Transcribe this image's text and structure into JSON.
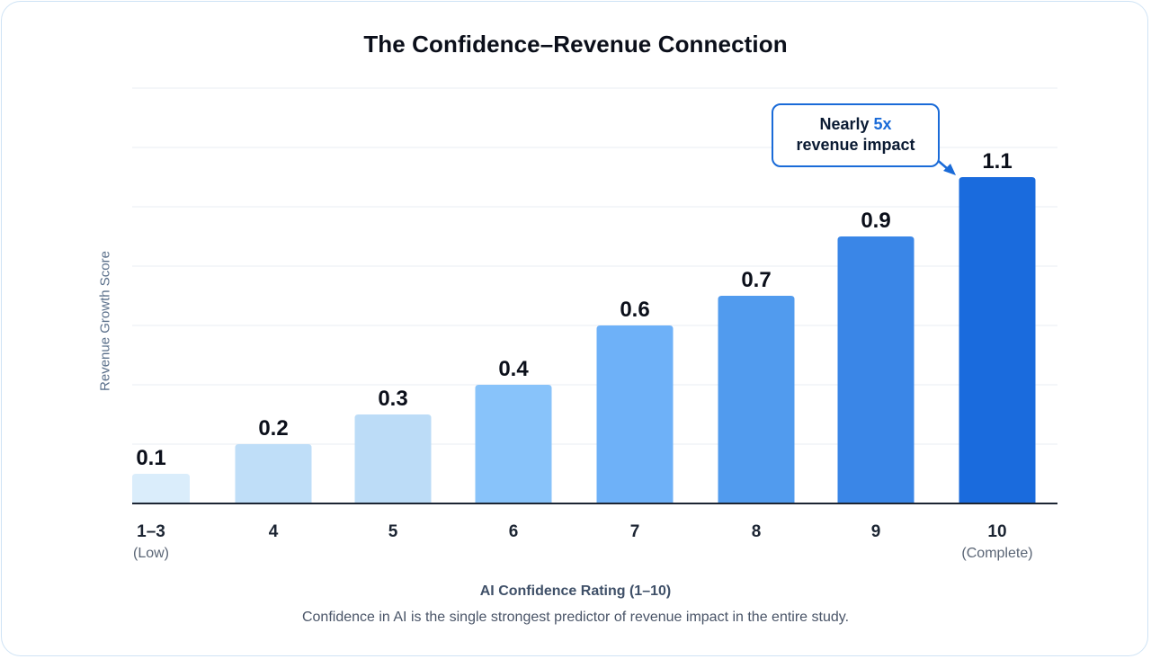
{
  "chart_data": {
    "type": "bar",
    "title": "The Confidence–Revenue Connection",
    "xlabel": "AI Confidence Rating (1–10)",
    "ylabel": "Revenue Growth Score",
    "categories": [
      "1–3",
      "4",
      "5",
      "6",
      "7",
      "8",
      "9",
      "10"
    ],
    "category_sublabels": [
      "(Low)",
      "",
      "",
      "",
      "",
      "",
      "",
      "(Complete)"
    ],
    "values": [
      0.1,
      0.2,
      0.3,
      0.4,
      0.6,
      0.7,
      0.9,
      1.1
    ],
    "data_labels": [
      "0.1",
      "0.2",
      "0.3",
      "0.4",
      "0.6",
      "0.7",
      "0.9",
      "1.1"
    ],
    "bar_colors": [
      "#daedfb",
      "#bfdef8",
      "#bcdcf7",
      "#88c3fa",
      "#6eb1f8",
      "#519bee",
      "#3a86e7",
      "#1a6bdd"
    ],
    "ylim": [
      0,
      1.4
    ],
    "grid": true,
    "legend": "none",
    "annotation": {
      "line1_prefix": "Nearly ",
      "line1_highlight": "5x",
      "line2": "revenue impact",
      "target_category": "10"
    },
    "footnote": "Confidence in AI is the single strongest predictor of revenue impact in the entire study."
  },
  "colors": {
    "accent": "#1a6bd8",
    "card_border": "#cfe3f5",
    "gridline": "#e9eef3",
    "axis": "#1c2533"
  }
}
